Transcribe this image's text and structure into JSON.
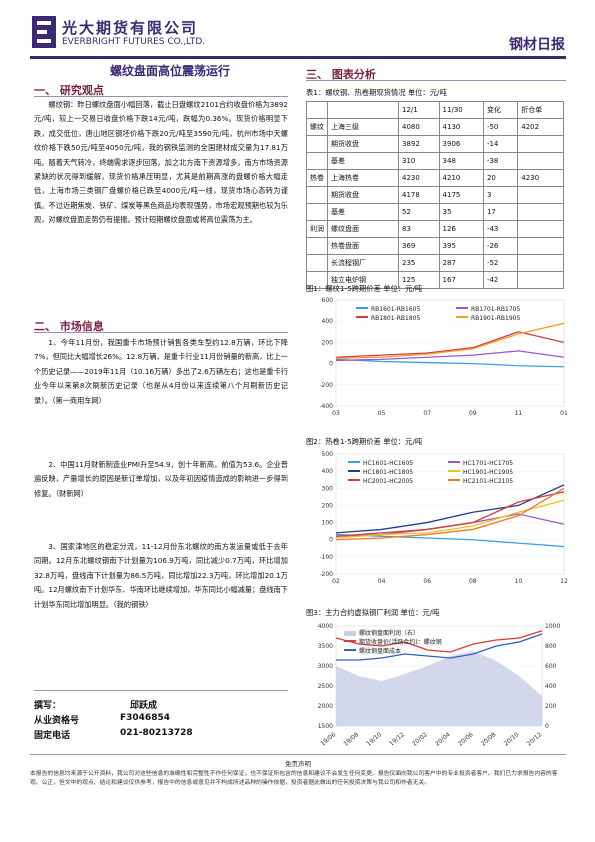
{
  "header": {
    "logo_cn": "光大期货有限公司",
    "logo_en": "EVERBRIGHT FUTURES CO.,LTD.",
    "report_type": "钢材日报"
  },
  "headline": "螺纹盘面高位震荡运行",
  "section1": {
    "title": "一、  研究观点",
    "text": "螺纹钢：昨日螺纹盘面小幅回落，截止日盘螺纹2101合约收盘价格为3892元/吨，较上一交易日收盘价格下跌14元/吨，跌幅为0.36%。现货价格明显下跌，成交低位，唐山地区钢坯价格下跌20元/吨至3590元/吨，杭州市场中天螺纹价格下跌50元/吨至4050元/吨，我的钢铁监测的全国建材成交量为17.81万吨。随着天气转冷，终端需求逐步回落，加之北方南下资源增多，南方市场资源紧缺的状况得到缓解，现货价格承压明显，尤其是前期高涨的盘螺价格大幅走低，上海市场三类钢厂盘螺价格已跌至4000元/吨一线，现货市场心态转为谨慎。不过近期焦炭、铁矿、煤炭等黑色商品均表现强势，市场宏观预期也较为乐观，对螺纹盘面走势仍有提振。预计短期螺纹盘面或将高位震荡为主。"
  },
  "section2": {
    "title": "二、  市场信息",
    "items": [
      "1、今年11月份，我国重卡市场预计销售各类车型约12.8万辆，环比下降7%，但同比大幅增长26%。12.8万辆，是重卡行业11月份销量的新高，比上一个历史记录——2019年11月（10.16万辆）多出了2.6万辆左右；这也是重卡行业今年以来第8次刷新历史记录（也是从4月份以来连续第八个月刷新历史记录）。（第一商用车网）",
      "2、中国11月财新制造业PMI升至54.9，创十年新高，前值为53.6。企业普遍反映，产量增长的原因是新订单增加，以及年初因疫情造成的影响进一步得到修复。（财新网）",
      "3、国家津地区的稳定分流，11-12月份东北螺纹的南方发运量或低于去年同期。12月东北螺纹钢南下计划量为106.9万吨，同比减少0.7万吨，环比增加32.8万吨，盘线南下计划量为86.5万吨，同比增加22.3万吨，环比增加20.1万吨。12月螺纹南下计划华东、华南环比继续增加，华东同比小幅减量；盘线南下计划华东同比增加明显。（我的钢铁）"
    ]
  },
  "contact": {
    "author_label": "撰写：",
    "author": "邱跃成",
    "cert_label": "从业资格号",
    "cert": "F3046854",
    "phone_label": "固定电话",
    "phone": "021-80213728"
  },
  "section3": {
    "title": "三、  图表分析",
    "table_caption": "表1：螺纹钢、热卷期现货情况    单位：元/吨",
    "table_headers": [
      "",
      "",
      "12/1",
      "11/30",
      "变化",
      "折仓单"
    ],
    "table_rows": [
      {
        "group": "螺纹",
        "name": "上海三级",
        "v1": "4080",
        "v2": "4130",
        "chg": "-50",
        "wr": "4202"
      },
      {
        "group": "",
        "name": "期货收盘",
        "v1": "3892",
        "v2": "3906",
        "chg": "-14",
        "wr": ""
      },
      {
        "group": "",
        "name": "基差",
        "v1": "310",
        "v2": "348",
        "chg": "-38",
        "wr": ""
      },
      {
        "group": "热卷",
        "name": "上海热卷",
        "v1": "4230",
        "v2": "4210",
        "chg": "20",
        "wr": "4230"
      },
      {
        "group": "",
        "name": "期货收盘",
        "v1": "4178",
        "v2": "4175",
        "chg": "3",
        "wr": ""
      },
      {
        "group": "",
        "name": "基差",
        "v1": "52",
        "v2": "35",
        "chg": "17",
        "wr": ""
      },
      {
        "group": "利润",
        "name": "螺纹盘面",
        "v1": "83",
        "v2": "126",
        "chg": "-43",
        "wr": ""
      },
      {
        "group": "",
        "name": "热卷盘面",
        "v1": "369",
        "v2": "395",
        "chg": "-26",
        "wr": ""
      },
      {
        "group": "",
        "name": "长流程钢厂",
        "v1": "235",
        "v2": "287",
        "chg": "-52",
        "wr": ""
      },
      {
        "group": "",
        "name": "独立电炉钢",
        "v1": "125",
        "v2": "167",
        "chg": "-42",
        "wr": ""
      }
    ],
    "fig1_caption": "图1：螺纹1-5跨期价差  单位：元/吨",
    "fig2_caption": "图2：热卷1-5跨期价差  单位：元/吨",
    "fig3_caption": "图3：主力合约虚拟钢厂利润  单位：元/吨"
  },
  "chart_data": [
    {
      "type": "line",
      "x": [
        "03",
        "05",
        "07",
        "09",
        "11",
        "01"
      ],
      "ylim": [
        -400,
        600
      ],
      "yticks": [
        -400,
        -200,
        0,
        200,
        400,
        600
      ],
      "series": [
        {
          "name": "RB1601-RB1605",
          "color": "#3aa0e0",
          "values": [
            40,
            20,
            10,
            0,
            -20,
            -30
          ]
        },
        {
          "name": "RB1701-RB1705",
          "color": "#9b59d0",
          "values": [
            30,
            40,
            60,
            80,
            120,
            60
          ]
        },
        {
          "name": "RB1801-RB1805",
          "color": "#d83a3a",
          "values": [
            60,
            80,
            100,
            150,
            300,
            200
          ]
        },
        {
          "name": "RB1901-RB1905",
          "color": "#f0a020",
          "values": [
            50,
            60,
            90,
            140,
            280,
            380
          ]
        }
      ]
    },
    {
      "type": "line",
      "x": [
        "02",
        "04",
        "06",
        "08",
        "10",
        "12"
      ],
      "ylim": [
        -200,
        500
      ],
      "yticks": [
        -200,
        -100,
        0,
        100,
        200,
        300,
        400,
        500
      ],
      "series": [
        {
          "name": "HC1601-HC1605",
          "color": "#3aa0e0",
          "values": [
            30,
            20,
            10,
            0,
            -20,
            -40
          ]
        },
        {
          "name": "HC1701-HC1705",
          "color": "#9b59d0",
          "values": [
            20,
            30,
            60,
            100,
            150,
            90
          ]
        },
        {
          "name": "HC1801-HC1805",
          "color": "#1f3f8f",
          "values": [
            40,
            60,
            100,
            160,
            200,
            320
          ]
        },
        {
          "name": "HC1901-HC1905",
          "color": "#f0c020",
          "values": [
            10,
            30,
            40,
            80,
            160,
            230
          ]
        },
        {
          "name": "HC2001-HC2005",
          "color": "#d83a3a",
          "values": [
            20,
            40,
            60,
            100,
            220,
            280
          ]
        },
        {
          "name": "HC2101-HC2105",
          "color": "#f07a20",
          "values": [
            0,
            10,
            30,
            60,
            140,
            300
          ]
        }
      ]
    },
    {
      "type": "line",
      "x": [
        "19/06",
        "19/08",
        "19/10",
        "19/12",
        "20/02",
        "20/04",
        "20/06",
        "20/08",
        "20/10",
        "20/12"
      ],
      "ylim": [
        1500,
        4000
      ],
      "y2lim": [
        0,
        1000
      ],
      "yticks": [
        1500,
        2000,
        2500,
        3000,
        3500,
        4000
      ],
      "y2ticks": [
        0,
        200,
        400,
        600,
        800,
        1000
      ],
      "series": [
        {
          "name": "螺纹钢盘面利润（右）",
          "color": "#c8cde6",
          "values": [
            600,
            500,
            450,
            520,
            600,
            700,
            750,
            650,
            500,
            300
          ]
        },
        {
          "name": "期货收盘价(活跃合约)：螺纹钢",
          "color": "#d83a3a",
          "values": [
            3700,
            3550,
            3500,
            3600,
            3400,
            3350,
            3550,
            3650,
            3700,
            3880
          ]
        },
        {
          "name": "螺纹钢盘面成本",
          "color": "#3060c0",
          "values": [
            3150,
            3150,
            3200,
            3300,
            3250,
            3200,
            3300,
            3500,
            3600,
            3800
          ]
        }
      ]
    }
  ],
  "disclaimer": {
    "title": "免责声明",
    "text": "本报告的信息均来源于公开资料，我公司对这些信息的准确性和完整性不作任何保证，也不保证所包含的信息和建议不会发生任何变更。报告仅面向我公司客户中的专业投资者客户。我们已力求报告内容的客观、公正，但文中的观点、结论和建议仅供参考，报告中的信息或意见并不构成所述品种的操作依据，投资者据此做出的任何投资决策与我公司和作者无关。"
  }
}
